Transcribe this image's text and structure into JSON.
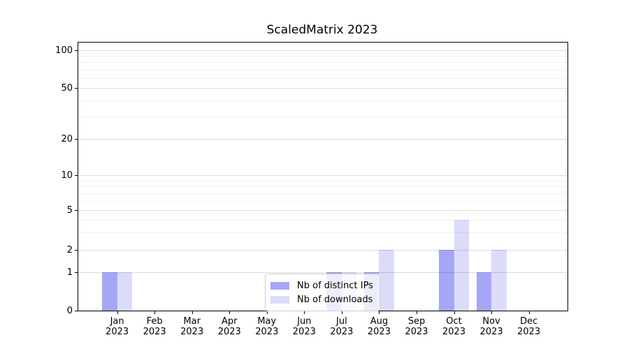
{
  "chart_data": {
    "type": "bar",
    "title": "ScaledMatrix 2023",
    "categories": [
      {
        "month": "Jan",
        "year": "2023"
      },
      {
        "month": "Feb",
        "year": "2023"
      },
      {
        "month": "Mar",
        "year": "2023"
      },
      {
        "month": "Apr",
        "year": "2023"
      },
      {
        "month": "May",
        "year": "2023"
      },
      {
        "month": "Jun",
        "year": "2023"
      },
      {
        "month": "Jul",
        "year": "2023"
      },
      {
        "month": "Aug",
        "year": "2023"
      },
      {
        "month": "Sep",
        "year": "2023"
      },
      {
        "month": "Oct",
        "year": "2023"
      },
      {
        "month": "Nov",
        "year": "2023"
      },
      {
        "month": "Dec",
        "year": "2023"
      }
    ],
    "series": [
      {
        "name": "Nb of distinct IPs",
        "color": "#a6a6f6",
        "values": [
          1,
          0,
          0,
          0,
          0,
          0,
          1,
          1,
          0,
          2,
          1,
          0
        ]
      },
      {
        "name": "Nb of downloads",
        "color": "#dcdcfa",
        "values": [
          1,
          0,
          0,
          0,
          0,
          0,
          1,
          2,
          0,
          4,
          2,
          0
        ]
      }
    ],
    "xlabel": "",
    "ylabel": "",
    "y_axis": {
      "scale": "log-like",
      "tick_values": [
        0,
        1,
        2,
        5,
        10,
        20,
        50,
        100
      ],
      "tick_labels": [
        "0",
        "1",
        "2",
        "5",
        "10",
        "20",
        "50",
        "100"
      ],
      "minor_gridline_values": [
        3,
        4,
        6,
        7,
        8,
        9,
        30,
        40,
        60,
        70,
        80,
        90
      ]
    },
    "grid": true,
    "legend_position": "lower center"
  },
  "colors": {
    "series_dark": "#a6a6f6",
    "series_light": "#dcdcfa",
    "grid_major": "rgba(0,0,0,0.14)",
    "grid_minor": "rgba(0,0,0,0.055)",
    "axis": "#000000",
    "legend_border": "#cccccc"
  }
}
